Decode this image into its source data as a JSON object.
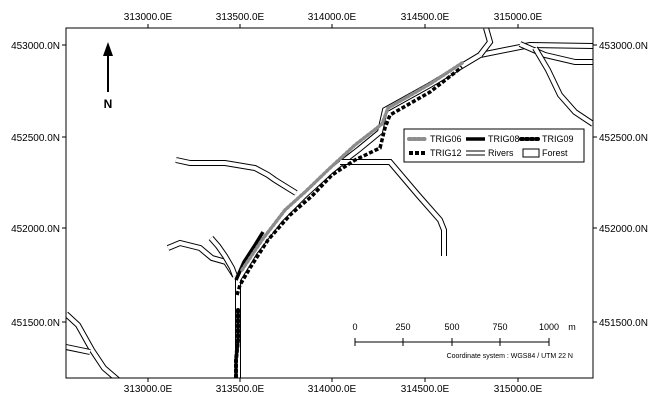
{
  "map": {
    "x_axis": {
      "top_labels": [
        "313000.0E",
        "313500.0E",
        "314000.0E",
        "314500.0E",
        "315000.0E"
      ],
      "bottom_labels": [
        "313000.0E",
        "313500.0E",
        "314000.0E",
        "314500.0E",
        "315000.0E"
      ]
    },
    "y_axis": {
      "left_labels": [
        "453000.0N",
        "452500.0N",
        "452000.0N",
        "451500.0N"
      ],
      "right_labels": [
        "453000.0N",
        "452500.0N",
        "452000.0N",
        "451500.0N"
      ]
    },
    "north_arrow": {
      "label": "N",
      "icon": "north-arrow-icon"
    },
    "legend": {
      "items": [
        {
          "label": "TRIG06",
          "style": "dotted-gray"
        },
        {
          "label": "TRIG08",
          "style": "solid-black"
        },
        {
          "label": "TRIG09",
          "style": "dotted-black"
        },
        {
          "label": "TRIG12",
          "style": "dashed-black"
        },
        {
          "label": "Rivers",
          "style": "double-line"
        },
        {
          "label": "Forest",
          "style": "white-box"
        }
      ]
    },
    "scale_bar": {
      "labels": [
        "0",
        "250",
        "500",
        "750",
        "1000"
      ],
      "unit": "m"
    },
    "coordinate_system": "Coordinate system : WGS84 / UTM 22 N",
    "colors": {
      "background": "#ffffff",
      "frame": "#000000",
      "river": "#000000",
      "trig06": "#8c8c8c",
      "trig08": "#000000",
      "trig09": "#000000",
      "trig12": "#000000"
    }
  }
}
